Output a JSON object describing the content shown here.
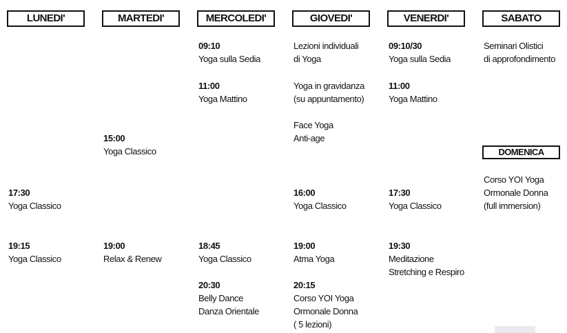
{
  "days": [
    {
      "header": "LUNEDI'",
      "entries": [
        {
          "time": "17:30",
          "lines": [
            "Yoga Classico"
          ]
        },
        {
          "time": "19:15",
          "lines": [
            "Yoga Classico"
          ]
        }
      ]
    },
    {
      "header": "MARTEDI'",
      "entries": [
        {
          "time": "15:00",
          "lines": [
            "Yoga Classico"
          ]
        },
        {
          "time": "19:00",
          "lines": [
            "Relax & Renew"
          ]
        }
      ]
    },
    {
      "header": "MERCOLEDI'",
      "entries": [
        {
          "time": "09:10",
          "lines": [
            "Yoga sulla Sedia"
          ]
        },
        {
          "time": "11:00",
          "lines": [
            "Yoga Mattino"
          ]
        },
        {
          "time": "18:45",
          "lines": [
            "Yoga Classico"
          ]
        },
        {
          "time": "20:30",
          "lines": [
            "Belly Dance",
            "Danza Orientale"
          ]
        }
      ]
    },
    {
      "header": "GIOVEDI'",
      "entries": [
        {
          "lines": [
            "Lezioni individuali",
            "di Yoga"
          ]
        },
        {
          "lines": [
            "Yoga in gravidanza",
            "(su appuntamento)"
          ]
        },
        {
          "lines": [
            "Face Yoga",
            "Anti-age"
          ]
        },
        {
          "time": "16:00",
          "lines": [
            "Yoga Classico"
          ]
        },
        {
          "time": "19:00",
          "lines": [
            "Atma Yoga"
          ]
        },
        {
          "time": "20:15",
          "lines": [
            "Corso YOI Yoga",
            "Ormonale Donna",
            "( 5 lezioni)"
          ]
        }
      ]
    },
    {
      "header": "VENERDI'",
      "entries": [
        {
          "time": "09:10/30",
          "lines": [
            "Yoga sulla Sedia"
          ]
        },
        {
          "time": "11:00",
          "lines": [
            "Yoga Mattino"
          ]
        },
        {
          "time": "17:30",
          "lines": [
            "Yoga Classico"
          ]
        },
        {
          "time": "19:30",
          "lines": [
            "Meditazione",
            "Stretching e Respiro"
          ]
        }
      ]
    },
    {
      "header": "SABATO",
      "entries": [
        {
          "lines": [
            "Seminari Olistici",
            "di approfondimento"
          ]
        }
      ]
    },
    {
      "header": "DOMENICA",
      "entries": [
        {
          "lines": [
            "Corso YOI Yoga",
            "Ormonale Donna",
            "(full immersion)"
          ]
        }
      ]
    }
  ]
}
